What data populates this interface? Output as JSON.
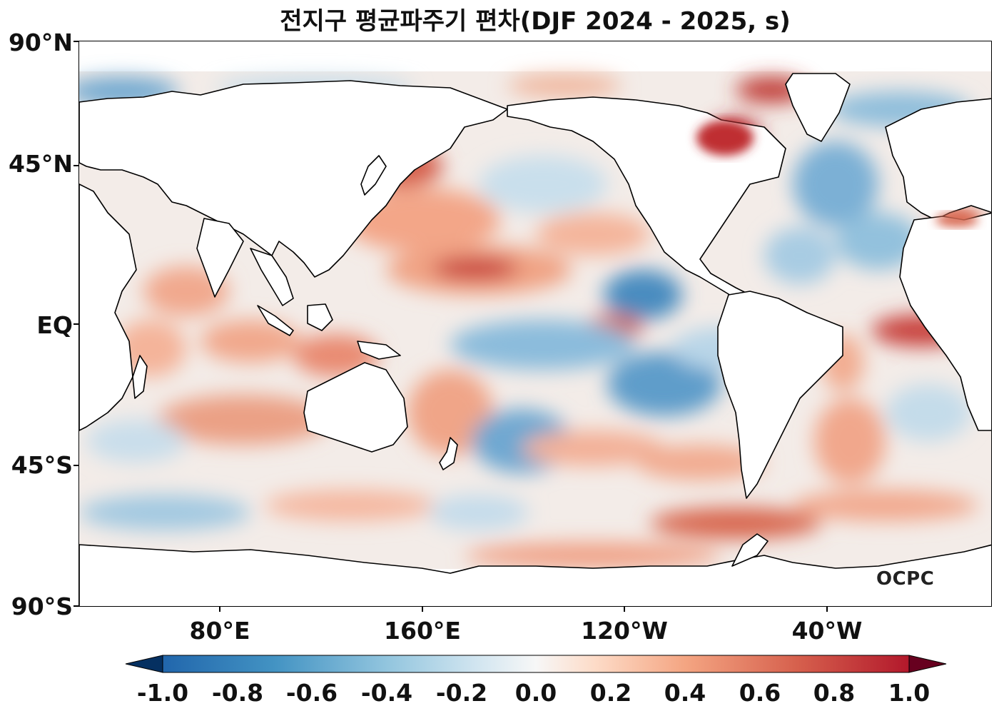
{
  "title": "전지구 평균파주기 편차(DJF 2024 - 2025, s)",
  "logo_text": "OCPC",
  "lat_labels": [
    "90°N",
    "45°N",
    "EQ",
    "45°S",
    "90°S"
  ],
  "lon_labels": [
    "80°E",
    "160°E",
    "120°W",
    "40°W"
  ],
  "colorbar": {
    "min": -1.0,
    "max": 1.0,
    "extend": "both",
    "tick_labels": [
      "-1.0",
      "-0.8",
      "-0.6",
      "-0.4",
      "-0.2",
      "0.0",
      "0.2",
      "0.4",
      "0.6",
      "0.8",
      "1.0"
    ],
    "colormap": "RdBu_r",
    "colors": [
      "#053061",
      "#2166ac",
      "#4393c3",
      "#92c5de",
      "#d1e5f0",
      "#f7f7f7",
      "#fddbc7",
      "#f4a582",
      "#d6604d",
      "#b2182b",
      "#67001f"
    ]
  },
  "map": {
    "projection": "PlateCarree",
    "central_longitude": "180°",
    "land_color": "#ffffff",
    "coastline_color": "#000000"
  }
}
